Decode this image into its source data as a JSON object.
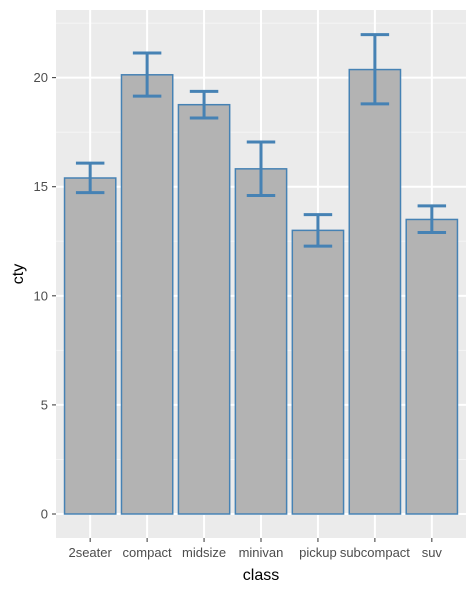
{
  "chart_data": {
    "type": "bar",
    "xlabel": "class",
    "ylabel": "cty",
    "categories": [
      "2seater",
      "compact",
      "midsize",
      "minivan",
      "pickup",
      "subcompact",
      "suv"
    ],
    "values": [
      15.4,
      20.13,
      18.76,
      15.82,
      13.0,
      20.37,
      13.5
    ],
    "error_bars": {
      "lower": [
        14.73,
        19.15,
        18.15,
        14.6,
        12.28,
        18.8,
        12.9
      ],
      "upper": [
        16.08,
        21.13,
        19.37,
        17.05,
        13.72,
        21.97,
        14.12
      ]
    },
    "yticks": [
      0,
      5,
      10,
      15,
      20
    ],
    "ylim": [
      -1.1,
      23.1
    ],
    "grid": true,
    "colors": {
      "bar_fill": "#b3b3b3",
      "bar_outline": "#4682b4",
      "error_bar": "#4682b4",
      "panel_background": "#ebebeb",
      "grid_major": "#ffffff",
      "grid_minor": "#f5f5f5"
    }
  }
}
